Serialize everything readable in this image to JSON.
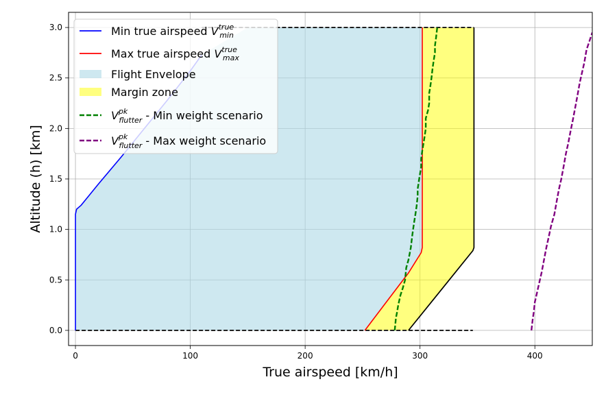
{
  "chart_data": {
    "type": "area",
    "xlabel": "True airspeed [km/h]",
    "ylabel": "Altitude (h) [km]",
    "xlim": [
      -6,
      450
    ],
    "ylim": [
      -0.15,
      3.15
    ],
    "xticks": [
      0,
      100,
      200,
      300,
      400
    ],
    "yticks": [
      0.0,
      0.5,
      1.0,
      1.5,
      2.0,
      2.5,
      3.0
    ],
    "xtick_labels": [
      "0",
      "100",
      "200",
      "300",
      "400"
    ],
    "ytick_labels": [
      "0.0",
      "0.5",
      "1.0",
      "1.5",
      "2.0",
      "2.5",
      "3.0"
    ],
    "grid": true,
    "legend_position": "top-left",
    "series": [
      {
        "name": "Min true airspeed V_min^true",
        "kind": "line",
        "color": "#0000ff",
        "x": [
          0,
          0,
          1,
          5,
          20,
          40,
          60,
          80,
          100,
          110
        ],
        "y": [
          0.0,
          1.15,
          1.2,
          1.24,
          1.45,
          1.72,
          2.0,
          2.28,
          2.57,
          2.73
        ]
      },
      {
        "name": "Max true airspeed V_max^true",
        "kind": "line",
        "color": "#ff0000",
        "x": [
          252,
          270,
          290,
          301,
          302,
          302,
          302
        ],
        "y": [
          0.0,
          0.27,
          0.57,
          0.77,
          0.82,
          2.0,
          3.0
        ]
      },
      {
        "name": "Flight Envelope",
        "kind": "area",
        "color": "#add8e6",
        "x": [
          0,
          0,
          1,
          5,
          20,
          40,
          60,
          80,
          100,
          110,
          150,
          302,
          302,
          301,
          290,
          270,
          252
        ],
        "y": [
          0.0,
          1.15,
          1.2,
          1.24,
          1.45,
          1.72,
          2.0,
          2.28,
          2.57,
          2.73,
          3.0,
          3.0,
          0.82,
          0.77,
          0.57,
          0.27,
          0.0
        ]
      },
      {
        "name": "Margin zone",
        "kind": "area",
        "color": "#ffff00",
        "x": [
          252,
          270,
          290,
          301,
          302,
          302,
          347,
          347,
          346,
          290
        ],
        "y": [
          0.0,
          0.27,
          0.57,
          0.77,
          0.82,
          3.0,
          3.0,
          0.82,
          0.79,
          0.0
        ]
      },
      {
        "name": "V_flutter^pk - Min weight scenario",
        "kind": "dashed-line",
        "color": "#008000",
        "x": [
          278,
          279,
          280,
          281,
          283,
          285,
          287,
          288,
          290,
          292,
          293,
          294,
          295,
          296,
          297,
          298,
          298,
          299,
          300,
          301,
          301,
          302,
          303,
          304,
          305,
          305,
          307,
          308,
          308,
          309,
          310,
          311,
          312,
          313,
          313,
          314,
          315
        ],
        "y": [
          0.0,
          0.12,
          0.18,
          0.25,
          0.35,
          0.42,
          0.5,
          0.62,
          0.7,
          0.82,
          0.92,
          1.0,
          1.08,
          1.15,
          1.23,
          1.33,
          1.4,
          1.48,
          1.55,
          1.62,
          1.7,
          1.78,
          1.85,
          1.92,
          2.0,
          2.1,
          2.18,
          2.25,
          2.35,
          2.42,
          2.5,
          2.6,
          2.68,
          2.75,
          2.82,
          2.9,
          3.0
        ]
      },
      {
        "name": "V_flutter^pk - Max weight scenario",
        "kind": "dashed-line",
        "color": "#800080",
        "x": [
          397,
          398,
          399,
          400,
          402,
          404,
          406,
          408,
          410,
          412,
          414,
          417,
          419,
          421,
          423,
          425,
          427,
          429,
          431,
          433,
          435,
          437,
          439,
          441,
          443,
          445,
          448,
          450
        ],
        "y": [
          0.0,
          0.1,
          0.18,
          0.28,
          0.38,
          0.48,
          0.58,
          0.7,
          0.82,
          0.92,
          1.03,
          1.15,
          1.28,
          1.4,
          1.5,
          1.62,
          1.75,
          1.85,
          1.97,
          2.08,
          2.2,
          2.32,
          2.45,
          2.55,
          2.65,
          2.78,
          2.88,
          2.95
        ]
      }
    ],
    "boundaries": [
      {
        "kind": "dashed-line",
        "color": "#000000",
        "x": [
          0,
          346
        ],
        "y": [
          0.0,
          0.0
        ]
      },
      {
        "kind": "dashed-line",
        "color": "#000000",
        "x": [
          110,
          347
        ],
        "y": [
          3.0,
          3.0
        ]
      },
      {
        "kind": "line",
        "color": "#000000",
        "x": [
          290,
          346,
          347,
          347
        ],
        "y": [
          0.0,
          0.79,
          0.82,
          3.0
        ]
      }
    ],
    "legend": [
      {
        "label": "Min true airspeed",
        "math": "V",
        "sup": "true",
        "sub": "min",
        "swatch": "line",
        "color": "#0000ff"
      },
      {
        "label": "Max true airspeed",
        "math": "V",
        "sup": "true",
        "sub": "max",
        "swatch": "line",
        "color": "#ff0000"
      },
      {
        "label": "Flight Envelope",
        "swatch": "patch",
        "color": "#add8e6"
      },
      {
        "label": "Margin zone",
        "swatch": "patch",
        "color": "#ffff00"
      },
      {
        "label": " - Min weight scenario",
        "math": "V",
        "sup": "pk",
        "sub": "flutter",
        "swatch": "dashed",
        "color": "#008000"
      },
      {
        "label": " - Max weight scenario",
        "math": "V",
        "sup": "pk",
        "sub": "flutter",
        "swatch": "dashed",
        "color": "#800080"
      }
    ]
  }
}
